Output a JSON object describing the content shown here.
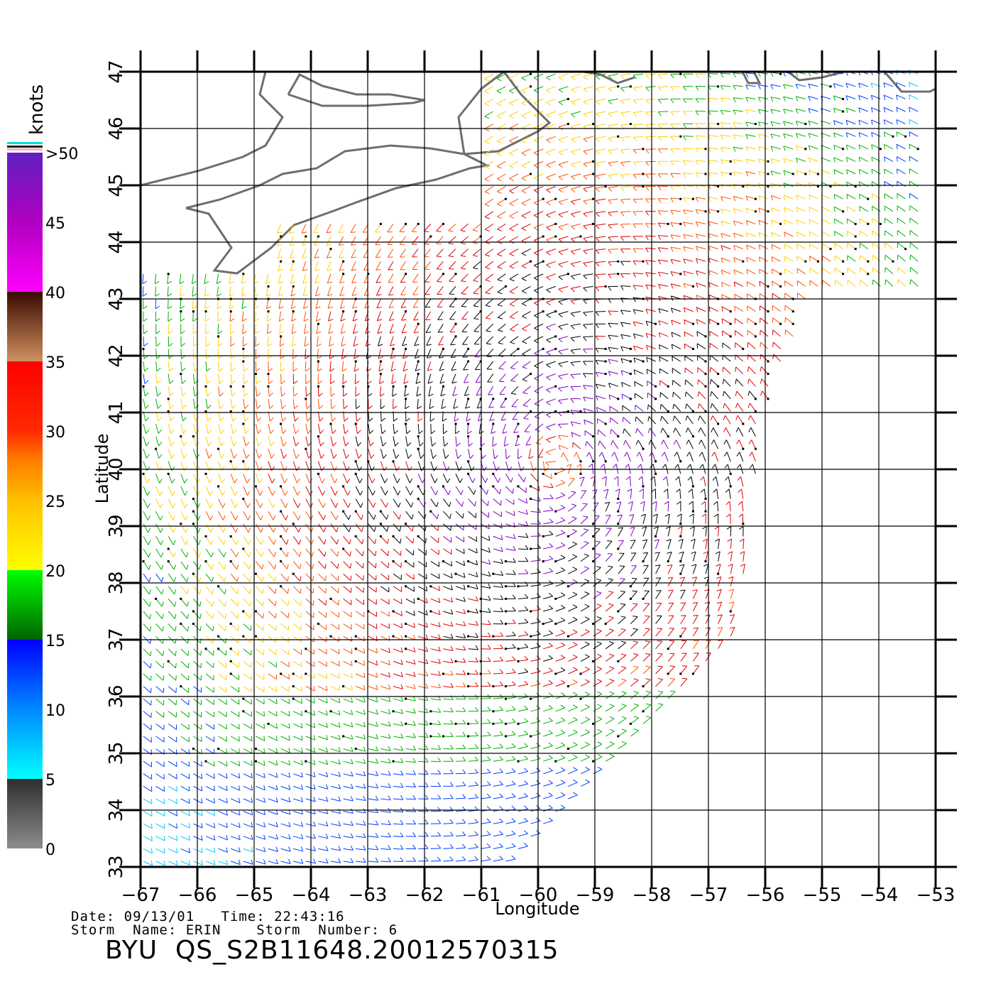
{
  "map": {
    "lon_range": [
      -67,
      -53
    ],
    "lat_range": [
      33,
      47
    ],
    "lon_ticks": [
      "−67",
      "−66",
      "−65",
      "−64",
      "−63",
      "−62",
      "−61",
      "−60",
      "−59",
      "−58",
      "−57",
      "−56",
      "−55",
      "−54",
      "−53"
    ],
    "lat_ticks": [
      "33",
      "34",
      "35",
      "36",
      "37",
      "38",
      "39",
      "40",
      "41",
      "42",
      "43",
      "44",
      "45",
      "46",
      "47"
    ],
    "x_label": "Longitude",
    "y_label": "Latitude",
    "coastline_color": "#6e6e6e",
    "storm_center": {
      "lon": -59.7,
      "lat": 40.1
    }
  },
  "colorbar": {
    "unit": "knots",
    "labels": [
      ">50",
      "45",
      "40",
      "35",
      "30",
      "25",
      "20",
      "15",
      "10",
      "5",
      "0"
    ],
    "stops": [
      {
        "label": "0-5",
        "colors": [
          "#8c8c8c",
          "#2e2e2e"
        ]
      },
      {
        "label": "5-10",
        "colors": [
          "#00ffff",
          "#0088ff"
        ]
      },
      {
        "label": "10-15",
        "colors": [
          "#0088ff",
          "#0000ff"
        ]
      },
      {
        "label": "15-20",
        "colors": [
          "#006400",
          "#00ff00"
        ]
      },
      {
        "label": "20-25",
        "colors": [
          "#ffff00",
          "#ff8c00"
        ]
      },
      {
        "label": "25-30",
        "colors": [
          "#ff8c00",
          "#ff2200"
        ]
      },
      {
        "label": "30-35",
        "colors": [
          "#ff2200",
          "#ff0000"
        ]
      },
      {
        "label": "35-40",
        "colors": [
          "#d09060",
          "#3a0a00"
        ]
      },
      {
        "label": "40-45",
        "colors": [
          "#ff00ff",
          "#b000c0"
        ]
      },
      {
        "label": "45-50",
        "colors": [
          "#b000c0",
          "#6020c0"
        ]
      }
    ]
  },
  "footer": {
    "date_line": "Date: 09/13/01   Time: 22:43:16",
    "storm_line": "Storm  Name: ERIN    Storm  Number: 6",
    "title": "BYU  QS_S2B11648.20012570315"
  }
}
